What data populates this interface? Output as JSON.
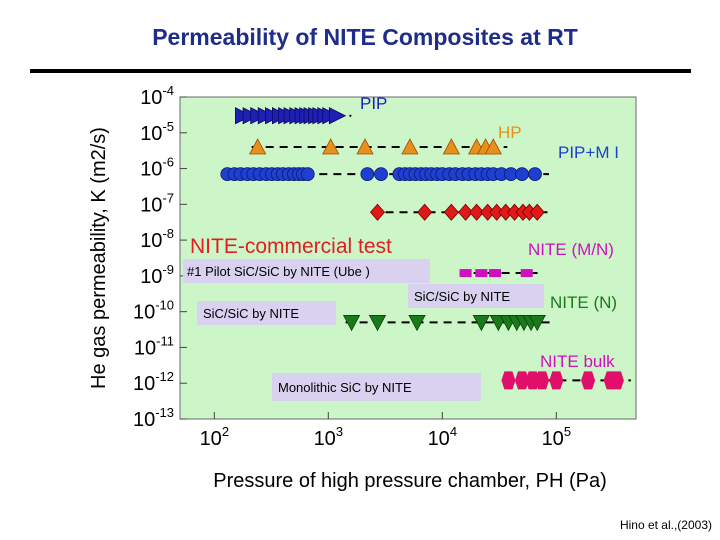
{
  "slide": {
    "title": "Permeability of NITE Composites   at RT",
    "citation": "Hino et al.,(2003)"
  },
  "chart_data": {
    "type": "scatter",
    "title": "Permeability of NITE Composites   at RT",
    "xlabel": "Pressure of high pressure chamber, PH (Pa)",
    "ylabel": "He gas permeability, K (m2/s)",
    "x_scale": "log",
    "y_scale": "log",
    "xlim": [
      50,
      500000
    ],
    "ylim": [
      1e-13,
      0.0001
    ],
    "x_ticks": [
      "10^2",
      "10^3",
      "10^4",
      "10^5"
    ],
    "y_ticks": [
      "10^-4",
      "10^-5",
      "10^-6",
      "10^-7",
      "10^-8",
      "10^-9",
      "10^-10",
      "10^-11",
      "10^-12",
      "10^-13"
    ],
    "colors": {
      "PIP": "#1f1fb4",
      "HP": "#e8901c",
      "PIP+M I": "#1f3fd0",
      "NITE (M/N)": "#e01818",
      "NITE-commercial": "#d010c0",
      "NITE (N)": "#1a7a1a",
      "NITE bulk": "#e0106a",
      "background": "#ccf5c8",
      "annotation_box": "#d8d2f0",
      "nite_text": "#e02020"
    },
    "series": [
      {
        "name": "PIP",
        "marker": "triangle-right",
        "line_y": 3e-05,
        "x": [
          180,
          210,
          245,
          285,
          330,
          380,
          430,
          480,
          540,
          600,
          660,
          720,
          790,
          860,
          950,
          1050,
          1200
        ]
      },
      {
        "name": "HP",
        "marker": "triangle-up",
        "line_y": 4e-06,
        "x": [
          240,
          1050,
          2100,
          5200,
          12000,
          20000,
          24000,
          28000
        ]
      },
      {
        "name": "PIP+M I",
        "marker": "circle",
        "line_y": 7e-07,
        "x": [
          130,
          150,
          170,
          195,
          220,
          250,
          285,
          320,
          360,
          400,
          450,
          500,
          550,
          600,
          660,
          2200,
          2900,
          4200,
          4700,
          5200,
          5800,
          6500,
          7200,
          8000,
          9000,
          10000,
          11500,
          13000,
          15000,
          17000,
          19500,
          22000,
          25000,
          28000,
          33000,
          40000,
          50000,
          65000
        ]
      },
      {
        "name": "NITE (M/N)",
        "marker": "diamond",
        "line_y": 6e-08,
        "x": [
          2700,
          7000,
          12000,
          16000,
          20000,
          25000,
          30000,
          36000,
          43000,
          51000,
          58000,
          68000
        ]
      },
      {
        "name": "NITE-commercial",
        "marker": "square",
        "line_y": 1.2e-09,
        "x": [
          16000,
          22000,
          29000,
          55000
        ]
      },
      {
        "name": "NITE (N)",
        "marker": "triangle-down",
        "line_y": 5e-11,
        "x": [
          1600,
          2700,
          6000,
          22000,
          31000,
          38000,
          45000,
          52000,
          60000,
          68000
        ]
      },
      {
        "name": "NITE bulk",
        "marker": "hexagon",
        "line_y": 1.2e-12,
        "x": [
          38000,
          50000,
          62000,
          75000,
          100000,
          190000,
          300000,
          340000
        ]
      }
    ],
    "group_labels": {
      "pip": "PIP",
      "hp": "HP",
      "pipmi": "PIP+M I",
      "nite_commercial": "NITE-commercial test",
      "nite_mn": "NITE (M/N)",
      "nite_n": "NITE (N)",
      "nite_bulk": "NITE bulk"
    },
    "annotations": {
      "pilot": "#1 Pilot SiC/SiC by NITE (Ube )",
      "sicsic_left": "SiC/SiC by NITE",
      "sicsic_right": "SiC/SiC by NITE",
      "monolithic": "Monolithic SiC by NITE"
    }
  }
}
